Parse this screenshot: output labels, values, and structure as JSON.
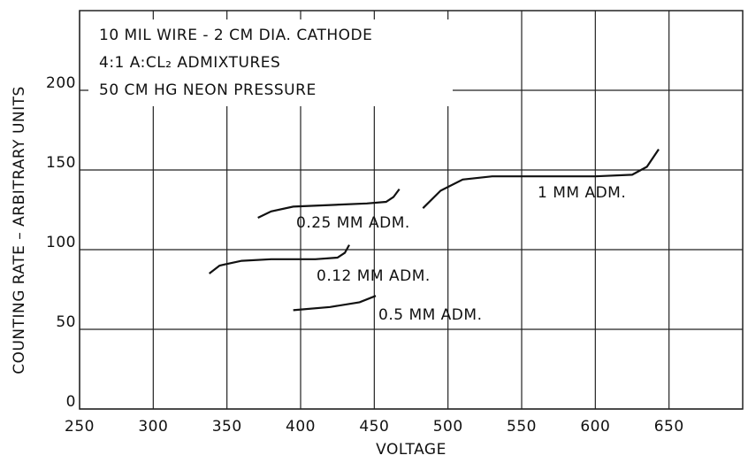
{
  "chart_data": {
    "type": "line",
    "xlabel": "VOLTAGE",
    "ylabel": "COUNTING RATE – ARBITRARY UNITS",
    "annotations": [
      "10 MIL WIRE - 2 CM DIA. CATHODE",
      "4:1 A:CL₂ ADMIXTURES",
      "50 CM HG NEON PRESSURE"
    ],
    "xlim": [
      250,
      700
    ],
    "xticks": [
      250,
      300,
      350,
      400,
      450,
      500,
      550,
      600,
      650
    ],
    "ylim": [
      0,
      250
    ],
    "yticks": [
      0,
      50,
      100,
      150,
      200
    ],
    "grid": true,
    "series": [
      {
        "name": "0.25 MM ADM.",
        "color": "#111111",
        "x": [
          371,
          380,
          395,
          420,
          445,
          458,
          463,
          467
        ],
        "values": [
          120,
          124,
          127,
          128,
          129,
          130,
          133,
          138
        ]
      },
      {
        "name": "1 MM ADM.",
        "color": "#111111",
        "x": [
          483,
          495,
          510,
          530,
          560,
          600,
          625,
          635,
          643
        ],
        "values": [
          126,
          137,
          144,
          146,
          146,
          146,
          147,
          152,
          163
        ]
      },
      {
        "name": "0.12 MM ADM.",
        "color": "#111111",
        "x": [
          338,
          345,
          360,
          380,
          410,
          425,
          430,
          433
        ],
        "values": [
          85,
          90,
          93,
          94,
          94,
          95,
          98,
          103
        ]
      },
      {
        "name": "0.5 MM ADM.",
        "color": "#111111",
        "x": [
          395,
          420,
          440,
          451
        ],
        "values": [
          62,
          64,
          67,
          71
        ]
      }
    ]
  }
}
